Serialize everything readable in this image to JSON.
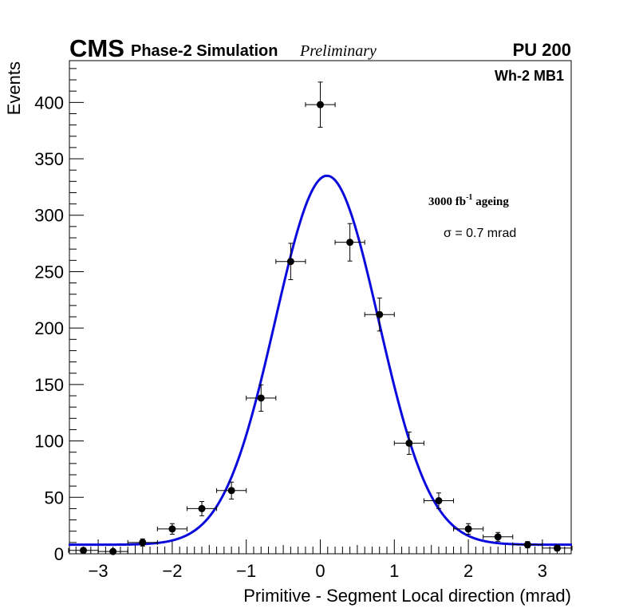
{
  "header": {
    "experiment": "CMS",
    "simulation": "Phase-2 Simulation",
    "status": "Preliminary",
    "pileup": "PU 200"
  },
  "labels": {
    "chamber": "Wh-2 MB1",
    "ageing_value": "3000 fb",
    "ageing_exponent": "-1",
    "ageing_suffix": " ageing",
    "sigma": "σ = 0.7 mrad"
  },
  "chart_data": {
    "type": "scatter",
    "title": "",
    "xlabel": "Primitive - Segment Local direction (mrad)",
    "ylabel": "Events",
    "xlim": [
      -3.4,
      3.4
    ],
    "ylim": [
      0,
      437
    ],
    "x_major_ticks": [
      -3,
      -2,
      -1,
      0,
      1,
      2,
      3
    ],
    "x_tick_labels": [
      "−3",
      "−2",
      "−1",
      "0",
      "1",
      "2",
      "3"
    ],
    "y_major_ticks": [
      0,
      50,
      100,
      150,
      200,
      250,
      300,
      350,
      400
    ],
    "y_tick_labels": [
      "0",
      "50",
      "100",
      "150",
      "200",
      "250",
      "300",
      "350",
      "400"
    ],
    "grid": false,
    "series": [
      {
        "name": "data",
        "x": [
          -3.2,
          -2.8,
          -2.4,
          -2.0,
          -1.6,
          -1.2,
          -0.8,
          -0.4,
          0.0,
          0.4,
          0.8,
          1.2,
          1.6,
          2.0,
          2.4,
          2.8,
          3.2
        ],
        "y": [
          3,
          2,
          10,
          22,
          40,
          56,
          138,
          259,
          398,
          276,
          212,
          98,
          47,
          22,
          15,
          8,
          5
        ],
        "x_err": 0.2,
        "y_err": [
          2,
          1.5,
          3.2,
          4.7,
          6.3,
          7.5,
          11.7,
          16.1,
          20,
          16.6,
          14.6,
          9.9,
          6.9,
          4.7,
          3.9,
          2.8,
          2.2
        ],
        "color": "#000000"
      },
      {
        "name": "gaussian fit",
        "type": "line",
        "amplitude": 327,
        "mean": 0.09,
        "sigma": 0.7,
        "constant": 8,
        "color": "#0a0adc"
      }
    ]
  }
}
